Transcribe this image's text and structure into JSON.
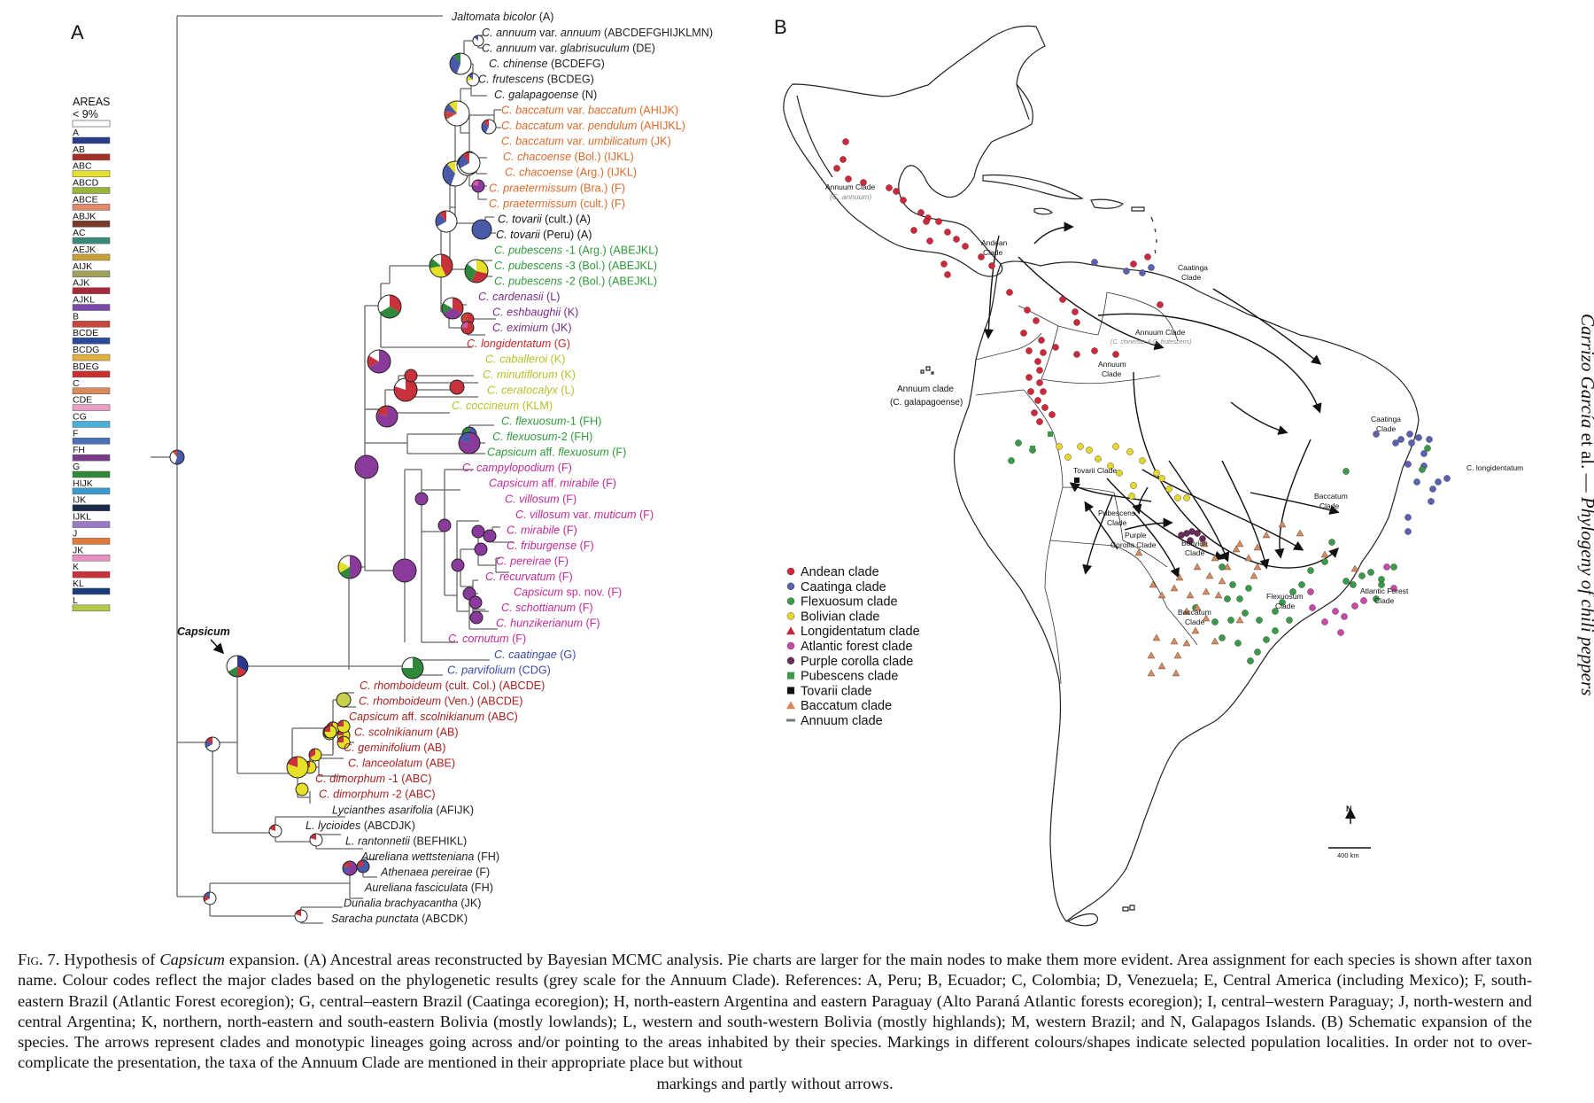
{
  "panels": {
    "a": "A",
    "b": "B"
  },
  "colors": {
    "A": "#2c3a8c",
    "B": "#c8463a",
    "C": "#d98a5a",
    "F": "#7a3a8a",
    "G": "#2e8a3a",
    "K": "#c8323a",
    "L": "#b5c84a",
    "yellow": "#e6e02a",
    "purple": "#8a3a9a",
    "blue": "#4a5aaa",
    "lime": "#c8d04a",
    "pink": "#d05aa8",
    "black": "#111111"
  },
  "legend": {
    "title": "AREAS",
    "threshold": "< 9%",
    "items": [
      {
        "label": "A",
        "color": "#2c3a8c"
      },
      {
        "label": "AB",
        "color": "#a63028"
      },
      {
        "label": "ABC",
        "color": "#e6e02a"
      },
      {
        "label": "ABCD",
        "color": "#9ab53a"
      },
      {
        "label": "ABCE",
        "color": "#e08a6a"
      },
      {
        "label": "ABJK",
        "color": "#7a3a28"
      },
      {
        "label": "AC",
        "color": "#3a8a7a"
      },
      {
        "label": "AEJK",
        "color": "#c8a03a"
      },
      {
        "label": "AIJK",
        "color": "#a0a05a"
      },
      {
        "label": "AJK",
        "color": "#a82a3a"
      },
      {
        "label": "AJKL",
        "color": "#7a4aa8"
      },
      {
        "label": "B",
        "color": "#c8463a"
      },
      {
        "label": "BCDE",
        "color": "#2a4a9a"
      },
      {
        "label": "BCDG",
        "color": "#e0b040"
      },
      {
        "label": "BDEG",
        "color": "#c83030"
      },
      {
        "label": "C",
        "color": "#d98a5a"
      },
      {
        "label": "CDE",
        "color": "#e8a0c0"
      },
      {
        "label": "CG",
        "color": "#4ab0d8"
      },
      {
        "label": "F",
        "color": "#4a70b8"
      },
      {
        "label": "FH",
        "color": "#7a3a8a"
      },
      {
        "label": "G",
        "color": "#2e8a3a"
      },
      {
        "label": "HIJK",
        "color": "#3a9ad0"
      },
      {
        "label": "IJK",
        "color": "#1a2a4a"
      },
      {
        "label": "IJKL",
        "color": "#9a7ac8"
      },
      {
        "label": "J",
        "color": "#e07a3a"
      },
      {
        "label": "JK",
        "color": "#e890c0"
      },
      {
        "label": "K",
        "color": "#c8323a"
      },
      {
        "label": "KL",
        "color": "#1a3a7a"
      },
      {
        "label": "L",
        "color": "#b5c84a"
      }
    ]
  },
  "capsicum_label": "Capsicum",
  "taxa": [
    {
      "sp": "Jaltomata bicolor",
      "areas": " (A)",
      "color": "#222222"
    },
    {
      "sp": "C. annuum",
      "mid": " var. ",
      "sp2": "annuum",
      "areas": " (ABCDEFGHIJKLMN)",
      "color": "#222222"
    },
    {
      "sp": "C. annuum",
      "mid": " var. ",
      "sp2": "glabrisuculum",
      "areas": " (DE)",
      "color": "#222222"
    },
    {
      "sp": "C. chinense",
      "areas": " (BCDEFG)",
      "color": "#222222"
    },
    {
      "sp": "C. frutescens",
      "areas": " (BCDEG)",
      "color": "#222222"
    },
    {
      "sp": "C. galapagoense",
      "areas": " (N)",
      "color": "#222222"
    },
    {
      "sp": "C. baccatum",
      "mid": " var. ",
      "sp2": "baccatum",
      "areas": " (AHIJK)",
      "color": "#d96a2a"
    },
    {
      "sp": "C. baccatum",
      "mid": " var. ",
      "sp2": "pendulum",
      "areas": " (AHIJKL)",
      "color": "#d96a2a"
    },
    {
      "sp": "C. baccatum",
      "mid": " var. ",
      "sp2": "umbilicatum",
      "areas": " (JK)",
      "color": "#d96a2a"
    },
    {
      "sp": "C. chacoense",
      "areas": " (Bol.) (IJKL)",
      "color": "#d96a2a"
    },
    {
      "sp": "C. chacoense",
      "areas": " (Arg.) (IJKL)",
      "color": "#d96a2a"
    },
    {
      "sp": "C. praetermissum",
      "areas": " (Bra.) (F)",
      "color": "#d96a2a"
    },
    {
      "sp": "C. praetermissum",
      "areas": " (cult.) (F)",
      "color": "#d96a2a"
    },
    {
      "sp": "C. tovarii",
      "areas": " (cult.) (A)",
      "color": "#111111"
    },
    {
      "sp": "C. tovarii",
      "areas": " (Peru) (A)",
      "color": "#111111"
    },
    {
      "sp": "C. pubescens",
      "areas": " -1 (Arg.) (ABEJKL)",
      "color": "#2e9a3a"
    },
    {
      "sp": "C. pubescens",
      "areas": " -3 (Bol.) (ABEJKL)",
      "color": "#2e9a3a"
    },
    {
      "sp": "C. pubescens",
      "areas": " -2 (Bol.) (ABEJKL)",
      "color": "#2e9a3a"
    },
    {
      "sp": "C. cardenasii",
      "areas": " (L)",
      "color": "#7a2a8a"
    },
    {
      "sp": "C. eshbaughii",
      "areas": " (K)",
      "color": "#7a2a8a"
    },
    {
      "sp": "C. eximium",
      "areas": " (JK)",
      "color": "#7a2a8a"
    },
    {
      "sp": "C. longidentatum",
      "areas": " (G)",
      "color": "#c8282a"
    },
    {
      "sp": "C. caballeroi",
      "areas": " (K)",
      "color": "#b8c02a"
    },
    {
      "sp": "C. minutiflorum",
      "areas": "  (K)",
      "color": "#b8c02a"
    },
    {
      "sp": "C. ceratocalyx",
      "areas": " (L)",
      "color": "#b8c02a"
    },
    {
      "sp": "C. coccineum",
      "areas": " (KLM)",
      "color": "#b8c02a"
    },
    {
      "sp": "C. flexuosum",
      "areas": "-1 (FH)",
      "color": "#2e9a3a"
    },
    {
      "sp": "C. flexuosum",
      "areas": "-2 (FH)",
      "color": "#2e9a3a"
    },
    {
      "sp": "Capsicum",
      "mid": " aff. ",
      "sp2": "flexuosum",
      "areas": " (F)",
      "color": "#2e9a3a"
    },
    {
      "sp": "C. campylopodium",
      "areas": " (F)",
      "color": "#c02a9a"
    },
    {
      "sp": "Capsicum",
      "mid": " aff. ",
      "sp2": "mirabile",
      "areas": " (F)",
      "color": "#c02a9a"
    },
    {
      "sp": "C. villosum",
      "areas": " (F)",
      "color": "#c02a9a"
    },
    {
      "sp": "C. villosum",
      "mid": " var. ",
      "sp2": "muticum",
      "areas": " (F)",
      "color": "#c02a9a"
    },
    {
      "sp": "C. mirabile",
      "areas": " (F)",
      "color": "#c02a9a"
    },
    {
      "sp": "C. friburgense",
      "areas": " (F)",
      "color": "#c02a9a"
    },
    {
      "sp": "C. pereirae",
      "areas": " (F)",
      "color": "#c02a9a"
    },
    {
      "sp": "C. recurvatum",
      "areas": " (F)",
      "color": "#c02a9a"
    },
    {
      "sp": "Capsicum",
      "mid": " sp. nov.",
      "areas": " (F)",
      "color": "#c02a9a"
    },
    {
      "sp": "C. schottianum",
      "areas": " (F)",
      "color": "#c02a9a"
    },
    {
      "sp": "C. hunzikerianum",
      "areas": " (F)",
      "color": "#c02a9a"
    },
    {
      "sp": "C. cornutum",
      "areas": " (F)",
      "color": "#c02a9a"
    },
    {
      "sp": "C. caatingae",
      "areas": " (G)",
      "color": "#3a4aa8"
    },
    {
      "sp": "C. parvifolium",
      "areas": " (CDG)",
      "color": "#3a4aa8"
    },
    {
      "sp": "C. rhomboideum",
      "areas": " (cult. Col.) (ABCDE)",
      "color": "#a82020"
    },
    {
      "sp": "C. rhomboideum",
      "areas": " (Ven.) (ABCDE)",
      "color": "#a82020"
    },
    {
      "sp": "Capsicum",
      "mid": " aff. ",
      "sp2": "scolnikianum",
      "areas": " (ABC)",
      "color": "#a82020"
    },
    {
      "sp": "C. scolnikianum",
      "areas": " (AB)",
      "color": "#a82020"
    },
    {
      "sp": "C. geminifolium",
      "areas": " (AB)",
      "color": "#a82020"
    },
    {
      "sp": "C. lanceolatum",
      "areas": " (ABE)",
      "color": "#a82020"
    },
    {
      "sp": "C. dimorphum",
      "areas": " -1 (ABC)",
      "color": "#a82020"
    },
    {
      "sp": "C. dimorphum",
      "areas": " -2 (ABC)",
      "color": "#a82020"
    },
    {
      "sp": "Lycianthes asarifolia",
      "areas": " (AFIJK)",
      "color": "#222222"
    },
    {
      "sp": "L. lycioides",
      "areas": " (ABCDJK)",
      "color": "#222222"
    },
    {
      "sp": "L. rantonnetii",
      "areas": " (BEFHIKL)",
      "color": "#222222"
    },
    {
      "sp": "Aureliana wettsteniana",
      "areas": " (FH)",
      "color": "#222222"
    },
    {
      "sp": "Athenaea pereirae",
      "areas": " (F)",
      "color": "#222222"
    },
    {
      "sp": "Aureliana fasciculata",
      "areas": " (FH)",
      "color": "#222222"
    },
    {
      "sp": "Dunalia brachyacantha",
      "areas": " (JK)",
      "color": "#222222"
    },
    {
      "sp": "Saracha punctata",
      "areas": " (ABCDK)",
      "color": "#222222"
    }
  ],
  "map_labels": {
    "annuum_top": "Annuum Clade",
    "annuum_top_sub": "(C. annuum)",
    "andean": "Andean\nClade",
    "caatinga_top": "Caatinga\nClade",
    "annuum_mid": "Annuum Clade",
    "annuum_mid_sub": "(C. chinense & C. frutescens)",
    "annuum_small": "Annuum\nClade",
    "annuum_gal": "Annuum clade",
    "annuum_gal_sub": "(C. galapagoense)",
    "caatinga_right": "Caatinga\nClade",
    "longidentatum": "C. longidentatum",
    "tovarii": "Tovarii Clade",
    "baccatum_mid": "Baccatum\nClade",
    "pubescens": "Pubescens\nClade",
    "purple_corolla": "Purple\nCorolla Clade",
    "bolivian": "Bolivian\nClade",
    "flexuosum": "Flexuosum\nClade",
    "atlantic": "Atlantic Forest\nClade",
    "baccatum_low": "Baccatum\nClade",
    "north": "N",
    "scale": "400 km"
  },
  "map_legend": [
    {
      "label": "Andean clade",
      "shape": "circle",
      "color": "#d0283a"
    },
    {
      "label": "Caatinga clade",
      "shape": "circle",
      "color": "#5a62b0"
    },
    {
      "label": "Flexuosum clade",
      "shape": "circle",
      "color": "#3a9a4a"
    },
    {
      "label": "Bolivian clade",
      "shape": "circle",
      "color": "#e6d82a"
    },
    {
      "label": "Longidentatum clade",
      "shape": "triangle",
      "color": "#c0283a"
    },
    {
      "label": "Atlantic forest clade",
      "shape": "circle",
      "color": "#c84aa8"
    },
    {
      "label": "Purple corolla clade",
      "shape": "circle",
      "color": "#6a2a5a"
    },
    {
      "label": "Pubescens clade",
      "shape": "square",
      "color": "#3a9a4a"
    },
    {
      "label": "Tovarii clade",
      "shape": "square",
      "color": "#111111"
    },
    {
      "label": "Baccatum clade",
      "shape": "triangle",
      "color": "#d98a5a"
    },
    {
      "label": "Annuum clade",
      "shape": "line",
      "color": "#777777"
    }
  ],
  "side_title": {
    "author": "Carrizo García",
    "rest": " et al. — ",
    "title": "Phylogeny of chili peppers"
  },
  "caption": {
    "fig": "Fig. 7.",
    "p1": " Hypothesis of ",
    "genus": "Capsicum",
    "p2": " expansion. (A) Ancestral areas reconstructed by Bayesian MCMC analysis. Pie charts are larger for the main nodes to make them more evident. Area assignment for each species is shown after taxon name. Colour codes reflect the major clades based on the phylogenetic results (grey scale for the Annuum Clade). References: A, Peru; B, Ecuador; C, Colombia; D, Venezuela; E, Central America (including Mexico); F, south-eastern Brazil (Atlantic Forest ecoregion); G, central–eastern Brazil (Caatinga ecoregion); H, north-eastern Argentina and eastern Paraguay (Alto Paraná Atlantic forests ecoregion); I, central–western Paraguay; J, north-western and central Argentina; K, northern, north-eastern and south-eastern Bolivia (mostly lowlands); L, western and south-western Bolivia (mostly highlands); M, western Brazil; and N, Galapagos Islands. (B) Schematic expansion of the species. The arrows represent clades and monotypic lineages going across and/or pointing to the areas inhabited by their species. Markings in different colours/shapes indicate selected population localities. In order not to over-complicate the presentation, the taxa of the Annuum Clade are mentioned in their appropriate place but without",
    "p3": "markings and partly without arrows."
  }
}
